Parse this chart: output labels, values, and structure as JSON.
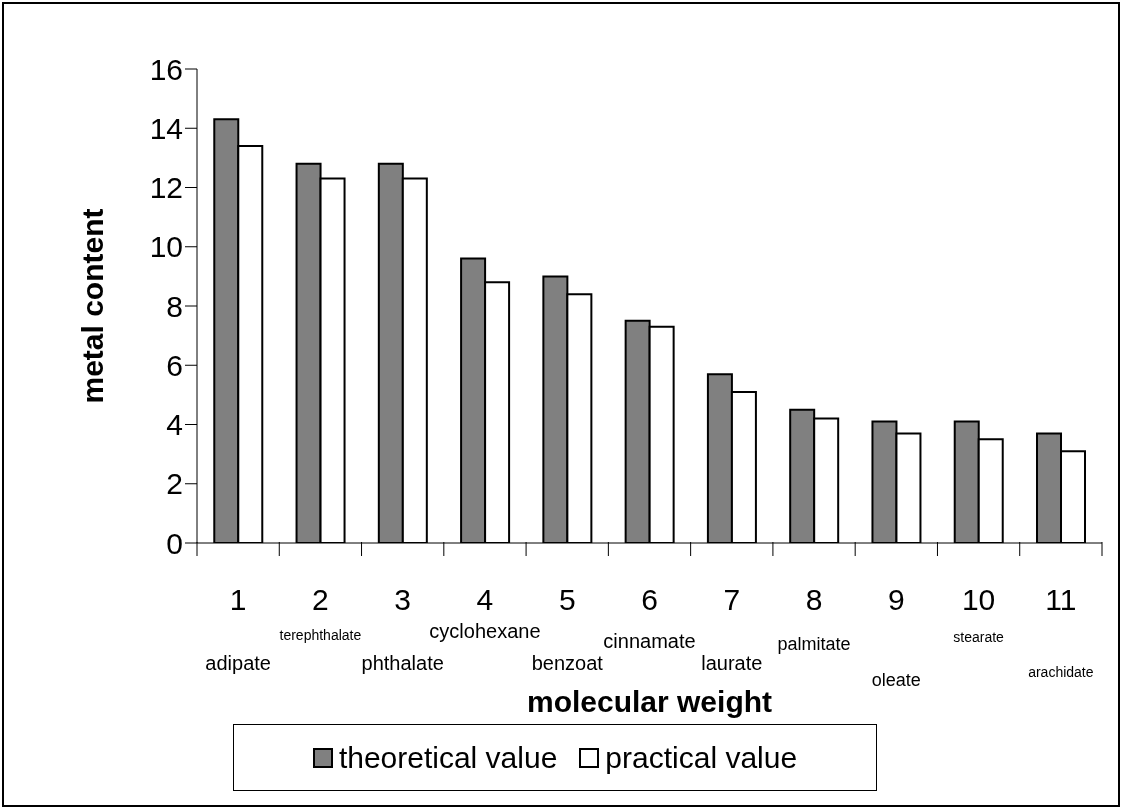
{
  "chart_data": {
    "type": "bar",
    "xlabel": "molecular weight",
    "ylabel": "metal content",
    "categories": [
      "1",
      "2",
      "3",
      "4",
      "5",
      "6",
      "7",
      "8",
      "9",
      "10",
      "11"
    ],
    "series": [
      {
        "name": "theoretical value",
        "color": "#808080",
        "values": [
          14.3,
          12.8,
          12.8,
          9.6,
          9.0,
          7.5,
          5.7,
          4.5,
          4.1,
          4.1,
          3.7
        ]
      },
      {
        "name": "practical value",
        "color": "#ffffff",
        "values": [
          13.4,
          12.3,
          12.3,
          8.8,
          8.4,
          7.3,
          5.1,
          4.2,
          3.7,
          3.5,
          3.1
        ]
      }
    ],
    "annotations": [
      "adipate",
      "terephthalate",
      "phthalate",
      "cyclohexane",
      "benzoat",
      "cinnamate",
      "laurate",
      "palmitate",
      "oleate",
      "stearate",
      "arachidate"
    ],
    "ylim": [
      0,
      16
    ],
    "yticks": [
      0,
      2,
      4,
      6,
      8,
      10,
      12,
      14,
      16
    ],
    "grid": false,
    "legend": "bottom"
  }
}
